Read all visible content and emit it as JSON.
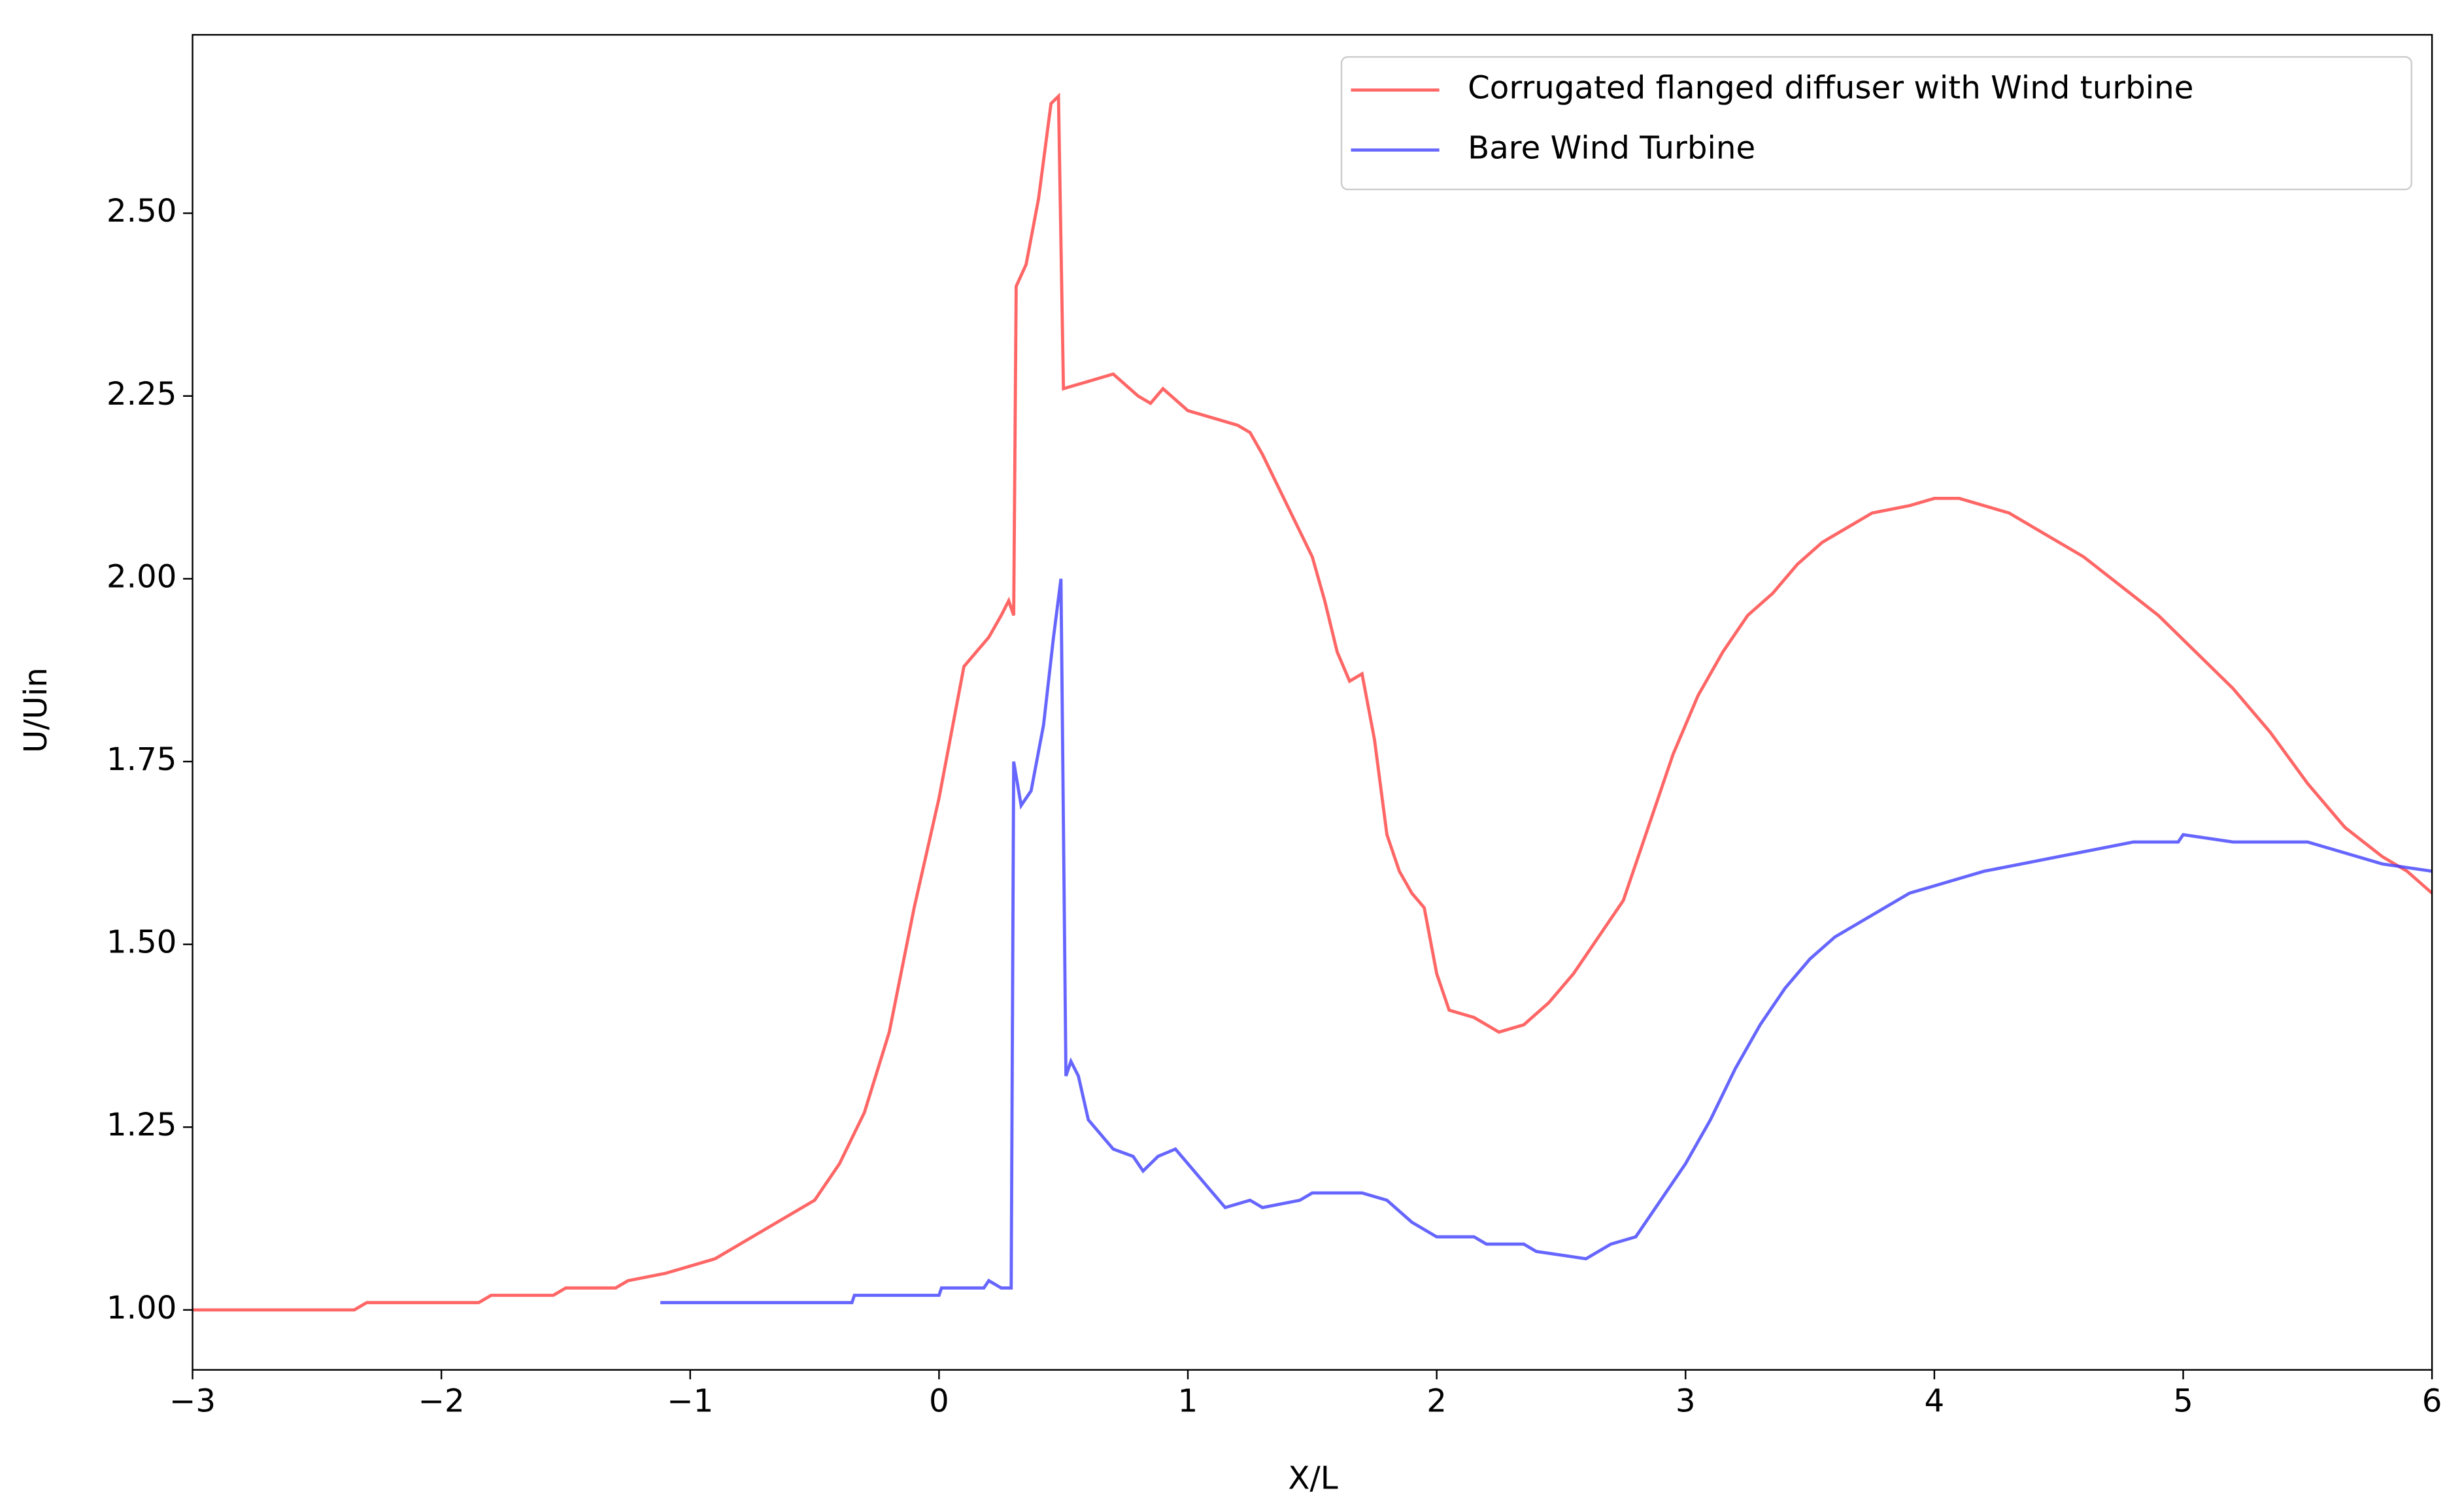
{
  "chart_data": {
    "type": "line",
    "xlabel": "X/L",
    "ylabel": "U/Uin",
    "xlim": [
      -3,
      6
    ],
    "ylim": [
      0.918,
      2.744
    ],
    "xticks": [
      {
        "value": -3,
        "label": "−3"
      },
      {
        "value": -2,
        "label": "−2"
      },
      {
        "value": -1,
        "label": "−1"
      },
      0,
      1,
      2,
      3,
      4,
      5,
      6
    ],
    "yticks": [
      {
        "value": 1,
        "label": "1.00"
      },
      {
        "value": 1.25,
        "label": "1.25"
      },
      {
        "value": 1.5,
        "label": "1.50"
      },
      {
        "value": 1.75,
        "label": "1.75"
      },
      {
        "value": 2,
        "label": "2.00"
      },
      {
        "value": 2.25,
        "label": "2.25"
      },
      {
        "value": 2.5,
        "label": "2.50"
      }
    ],
    "legend": "upper right",
    "series": [
      {
        "name": "Corrugated flanged diffuser with Wind turbine",
        "color": "#ff4040",
        "x": [
          -3,
          -2.35,
          -2.3,
          -1.85,
          -1.8,
          -1.55,
          -1.5,
          -1.3,
          -1.25,
          -1.1,
          -1.0,
          -0.9,
          -0.8,
          -0.7,
          -0.6,
          -0.5,
          -0.4,
          -0.3,
          -0.2,
          -0.1,
          0,
          0.1,
          0.15,
          0.2,
          0.25,
          0.28,
          0.3,
          0.31,
          0.35,
          0.4,
          0.45,
          0.48,
          0.5,
          0.6,
          0.7,
          0.8,
          0.85,
          0.9,
          1.0,
          1.1,
          1.2,
          1.25,
          1.3,
          1.4,
          1.5,
          1.55,
          1.6,
          1.65,
          1.7,
          1.75,
          1.8,
          1.85,
          1.9,
          1.95,
          2.0,
          2.05,
          2.15,
          2.25,
          2.35,
          2.45,
          2.55,
          2.65,
          2.75,
          2.85,
          2.95,
          3.05,
          3.15,
          3.25,
          3.35,
          3.45,
          3.55,
          3.65,
          3.75,
          3.9,
          4.0,
          4.1,
          4.2,
          4.3,
          4.45,
          4.6,
          4.75,
          4.9,
          5.05,
          5.2,
          5.35,
          5.5,
          5.65,
          5.8,
          5.9,
          6.0
        ],
        "values": [
          1.0,
          1.0,
          1.01,
          1.01,
          1.02,
          1.02,
          1.03,
          1.03,
          1.04,
          1.05,
          1.06,
          1.07,
          1.09,
          1.11,
          1.13,
          1.15,
          1.2,
          1.27,
          1.38,
          1.55,
          1.7,
          1.88,
          1.9,
          1.92,
          1.95,
          1.97,
          1.95,
          2.4,
          2.43,
          2.52,
          2.65,
          2.66,
          2.26,
          2.27,
          2.28,
          2.25,
          2.24,
          2.26,
          2.23,
          2.22,
          2.21,
          2.2,
          2.17,
          2.1,
          2.03,
          1.97,
          1.9,
          1.86,
          1.87,
          1.78,
          1.65,
          1.6,
          1.57,
          1.55,
          1.46,
          1.41,
          1.4,
          1.38,
          1.39,
          1.42,
          1.46,
          1.51,
          1.56,
          1.66,
          1.76,
          1.84,
          1.9,
          1.95,
          1.98,
          2.02,
          2.05,
          2.07,
          2.09,
          2.1,
          2.11,
          2.11,
          2.1,
          2.09,
          2.06,
          2.03,
          1.99,
          1.95,
          1.9,
          1.85,
          1.79,
          1.72,
          1.66,
          1.62,
          1.6,
          1.57
        ]
      },
      {
        "name": "Bare Wind Turbine",
        "color": "#4040ff",
        "x": [
          -1.12,
          -0.35,
          -0.34,
          0,
          0.01,
          0.18,
          0.2,
          0.25,
          0.29,
          0.3,
          0.33,
          0.37,
          0.42,
          0.46,
          0.49,
          0.51,
          0.53,
          0.56,
          0.6,
          0.7,
          0.78,
          0.82,
          0.88,
          0.95,
          1.0,
          1.1,
          1.15,
          1.25,
          1.3,
          1.45,
          1.5,
          1.7,
          1.8,
          1.9,
          2.0,
          2.15,
          2.2,
          2.35,
          2.4,
          2.6,
          2.7,
          2.8,
          2.9,
          3.0,
          3.1,
          3.2,
          3.3,
          3.4,
          3.5,
          3.6,
          3.7,
          3.8,
          3.9,
          4.0,
          4.1,
          4.2,
          4.35,
          4.5,
          4.65,
          4.8,
          4.98,
          5.0,
          5.2,
          5.5,
          5.6,
          5.8,
          6.0
        ],
        "values": [
          1.01,
          1.01,
          1.02,
          1.02,
          1.03,
          1.03,
          1.04,
          1.03,
          1.03,
          1.75,
          1.69,
          1.71,
          1.8,
          1.92,
          2.0,
          1.32,
          1.34,
          1.32,
          1.26,
          1.22,
          1.21,
          1.19,
          1.21,
          1.22,
          1.2,
          1.16,
          1.14,
          1.15,
          1.14,
          1.15,
          1.16,
          1.16,
          1.15,
          1.12,
          1.1,
          1.1,
          1.09,
          1.09,
          1.08,
          1.07,
          1.09,
          1.1,
          1.15,
          1.2,
          1.26,
          1.33,
          1.39,
          1.44,
          1.48,
          1.51,
          1.53,
          1.55,
          1.57,
          1.58,
          1.59,
          1.6,
          1.61,
          1.62,
          1.63,
          1.64,
          1.64,
          1.65,
          1.64,
          1.64,
          1.63,
          1.61,
          1.6
        ]
      }
    ]
  }
}
